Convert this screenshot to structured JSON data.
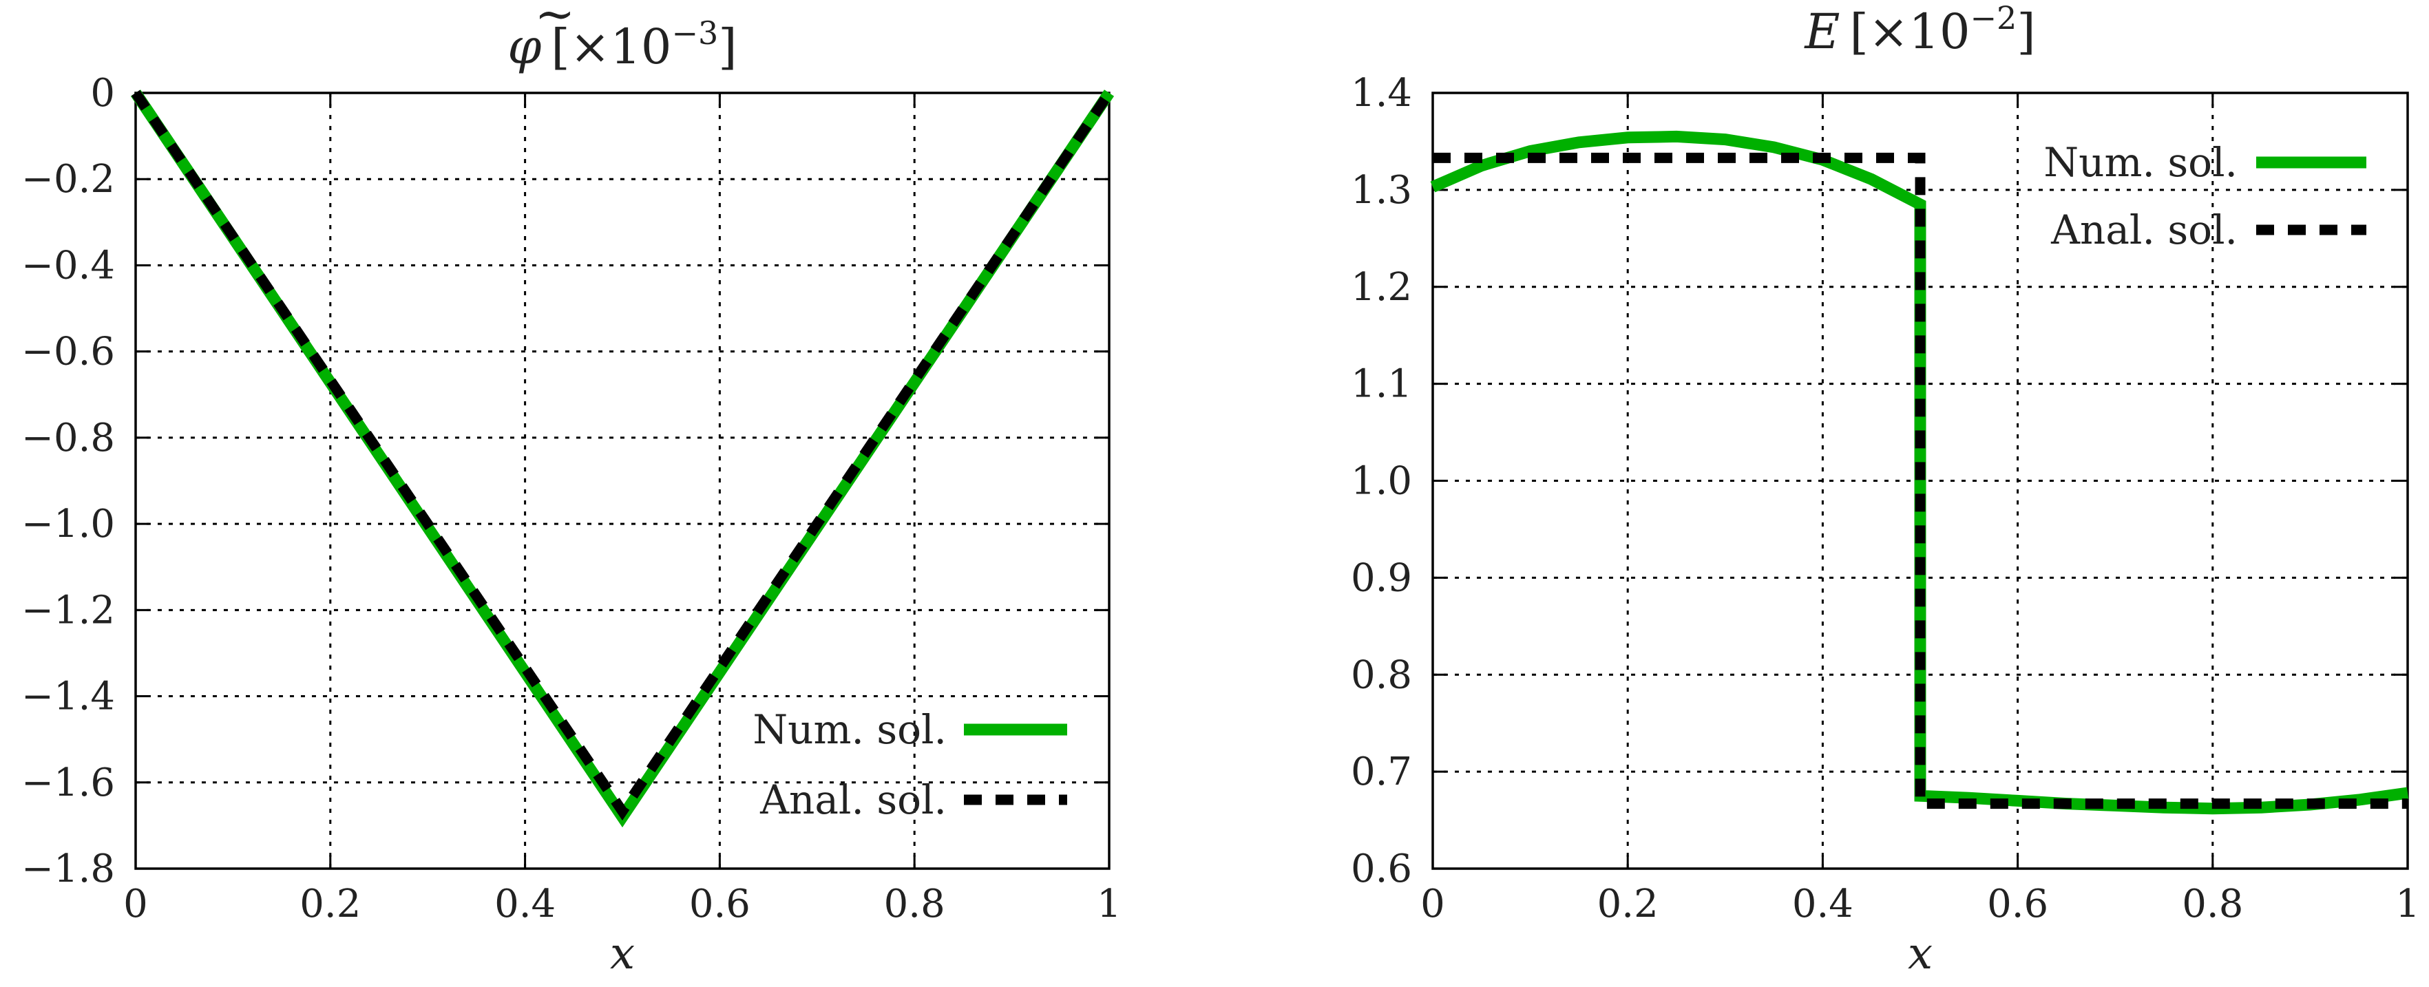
{
  "chart_data": [
    {
      "type": "line",
      "title": "φ̃ [×10⁻³]",
      "title_parts": {
        "symbol": "φ",
        "accent": "~",
        "bracket_open": "[",
        "times": "×10",
        "exponent": "−3",
        "bracket_close": "]"
      },
      "xlabel": "x",
      "ylabel": "",
      "xlim": [
        0,
        1
      ],
      "ylim": [
        -1.8,
        0
      ],
      "xticks": [
        0,
        0.2,
        0.4,
        0.6,
        0.8,
        1
      ],
      "xtick_labels": [
        "0",
        "0.2",
        "0.4",
        "0.6",
        "0.8",
        "1"
      ],
      "yticks": [
        0,
        -0.2,
        -0.4,
        -0.6,
        -0.8,
        -1.0,
        -1.2,
        -1.4,
        -1.6,
        -1.8
      ],
      "ytick_labels": [
        "0",
        "−0.2",
        "−0.4",
        "−0.6",
        "−0.8",
        "−1.0",
        "−1.2",
        "−1.4",
        "−1.6",
        "−1.8"
      ],
      "grid": true,
      "legend_position": "bottom-right",
      "series": [
        {
          "name": "Num. sol.",
          "color": "#00b000",
          "style": "solid",
          "x": [
            0,
            0.5,
            1
          ],
          "y": [
            0,
            -1.68,
            0
          ]
        },
        {
          "name": "Anal. sol.",
          "color": "#000000",
          "style": "dashed",
          "x": [
            0,
            0.5,
            1
          ],
          "y": [
            0,
            -1.667,
            0
          ]
        }
      ]
    },
    {
      "type": "line",
      "title": "E [×10⁻²]",
      "title_parts": {
        "symbol": "E",
        "bracket_open": "[",
        "times": "×10",
        "exponent": "−2",
        "bracket_close": "]"
      },
      "xlabel": "x",
      "ylabel": "",
      "xlim": [
        0,
        1
      ],
      "ylim": [
        0.6,
        1.4
      ],
      "xticks": [
        0,
        0.2,
        0.4,
        0.6,
        0.8,
        1
      ],
      "xtick_labels": [
        "0",
        "0.2",
        "0.4",
        "0.6",
        "0.8",
        "1"
      ],
      "yticks": [
        0.6,
        0.7,
        0.8,
        0.9,
        1.0,
        1.1,
        1.2,
        1.3,
        1.4
      ],
      "ytick_labels": [
        "0.6",
        "0.7",
        "0.8",
        "0.9",
        "1.0",
        "1.1",
        "1.2",
        "1.3",
        "1.4"
      ],
      "grid": true,
      "legend_position": "top-right",
      "series": [
        {
          "name": "Num. sol.",
          "color": "#00b000",
          "style": "solid",
          "x": [
            0,
            0.05,
            0.1,
            0.15,
            0.2,
            0.25,
            0.3,
            0.35,
            0.4,
            0.45,
            0.5,
            0.5,
            0.55,
            0.6,
            0.65,
            0.7,
            0.75,
            0.8,
            0.85,
            0.9,
            0.95,
            1.0
          ],
          "y": [
            1.303,
            1.325,
            1.34,
            1.349,
            1.354,
            1.355,
            1.352,
            1.344,
            1.331,
            1.311,
            1.285,
            0.675,
            0.673,
            0.67,
            0.667,
            0.665,
            0.663,
            0.662,
            0.663,
            0.666,
            0.671,
            0.678
          ]
        },
        {
          "name": "Anal. sol.",
          "color": "#000000",
          "style": "dashed",
          "x": [
            0,
            0.5,
            0.5,
            1.0
          ],
          "y": [
            1.333,
            1.333,
            0.667,
            0.667
          ]
        }
      ]
    }
  ]
}
